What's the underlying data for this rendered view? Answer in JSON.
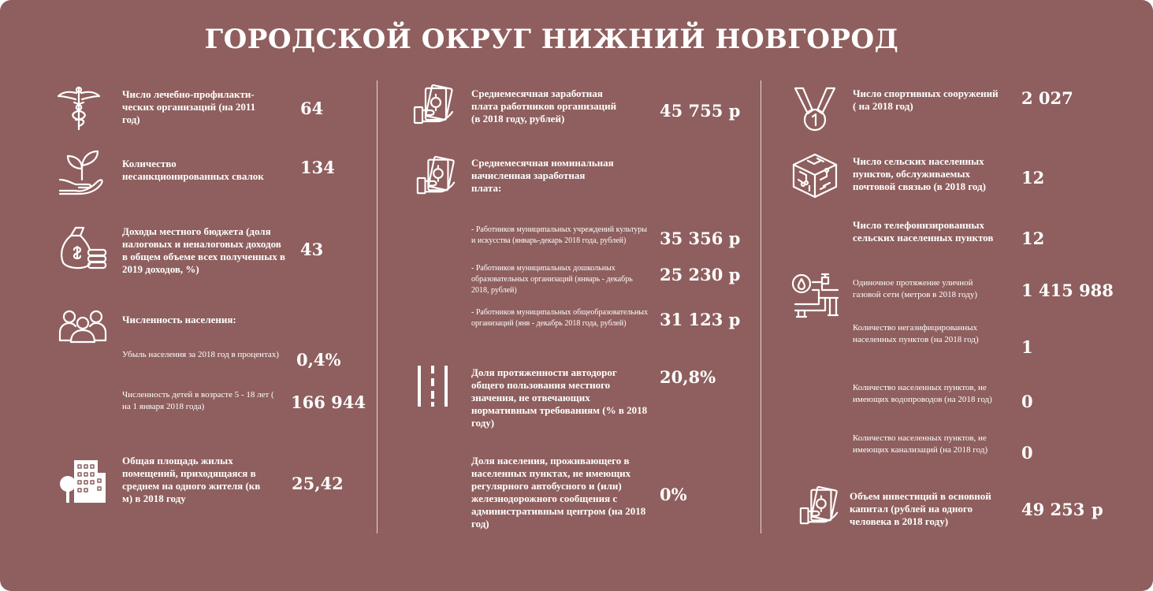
{
  "title": "ГОРОДСКОЙ ОКРУГ НИЖНИЙ НОВГОРОД",
  "colors": {
    "background": "#8e5f5e",
    "text": "#ffffff"
  },
  "col1": {
    "medical": {
      "icon": "caduceus-icon",
      "label": "Число лечебно-профилакти-ческих организаций (на 2011 год)",
      "value": "64"
    },
    "dumps": {
      "icon": "sprout-hand-icon",
      "label": "Количество несанкционированных свалок",
      "value": "134"
    },
    "budget": {
      "icon": "money-bag-coins-icon",
      "label": "Доходы местного бюджета (доля налоговых и неналоговых доходов в общем объеме всех полученных в 2019 доходов, %)",
      "value": "43"
    },
    "population": {
      "icon": "people-group-icon",
      "label": "Численность населения:"
    },
    "decline": {
      "label": "Убыль населения за 2018 год в процентах)",
      "value": "0,4%"
    },
    "children": {
      "label": "Численность детей в возрасте 5 - 18 лет ( на 1 января 2018 года)",
      "value": "166 944"
    },
    "housing": {
      "icon": "buildings-icon",
      "label": "Общая площадь жилых помещений, приходящаяся в среднем на одного жителя (кв м) в 2018 году",
      "value": "25,42"
    }
  },
  "col2": {
    "avg_salary": {
      "icon": "salary-hand-icon",
      "label": "Среднемесячная заработная плата работников организаций (в 2018 году, рублей)",
      "value": "45 755 р"
    },
    "nominal_salary": {
      "icon": "salary-hand-icon",
      "label": "Среднемесячная номинальная начисленная заработная плата:"
    },
    "culture": {
      "label": "- Работников муниципальных учреждений культуры и искусства (январь-декарь 2018 года, рублей)",
      "value": "35 356 р"
    },
    "preschool": {
      "label": "- Работников муниципальных дошкольных образовательных организаций (январь - декабрь 2018, рублей)",
      "value": "25 230 р"
    },
    "schools": {
      "label": "- Работников муниципальных общеобразовательных организаций (янв - декабрь 2018 года, рублей)",
      "value": "31 123 р"
    },
    "roads": {
      "icon": "road-icon",
      "label": "Доля протяженности автодорог общего пользования местного значения, не отвечающих нормативным требованиям (% в 2018 году)",
      "value": "20,8%"
    },
    "transport": {
      "label": "Доля населения, проживающего в населенных пунктах, не имеющих регулярного автобусного и (или) железнодорожного сообщения с административным центром (на 2018 год)",
      "value": "0%"
    }
  },
  "col3": {
    "sports": {
      "icon": "medal-icon",
      "label": "Число спортивных сооружений ( на 2018 год)",
      "value": "2 027"
    },
    "postal": {
      "icon": "circuit-box-icon",
      "label": "Число сельских населенных пунктов, обслуживаемых почтовой связью (в 2018 год)",
      "value": "12"
    },
    "phone": {
      "label": "Число телефонизированных сельских населенных пунктов",
      "value": "12"
    },
    "gas_length": {
      "icon": "gas-pipe-icon",
      "label": "Одиночное протяжение уличной газовой сети (метров в 2018 году)",
      "value": "1 415 988"
    },
    "no_gas": {
      "label": "Количество негазифицированных населенных пунктов (на 2018 год)",
      "value": "1"
    },
    "no_water": {
      "label": "Количество населенных пунктов, не имеющих водопроводов  (на 2018 год)",
      "value": "0"
    },
    "no_sewer": {
      "label": "Количество населенных пунктов, не имеющих канализаций (на 2018 год)",
      "value": "0"
    },
    "investment": {
      "icon": "salary-hand-icon",
      "label": "Объем инвестиций в основной капитал (рублей на одного человека в 2018 году)",
      "value": "49 253",
      "currency": "р"
    }
  }
}
